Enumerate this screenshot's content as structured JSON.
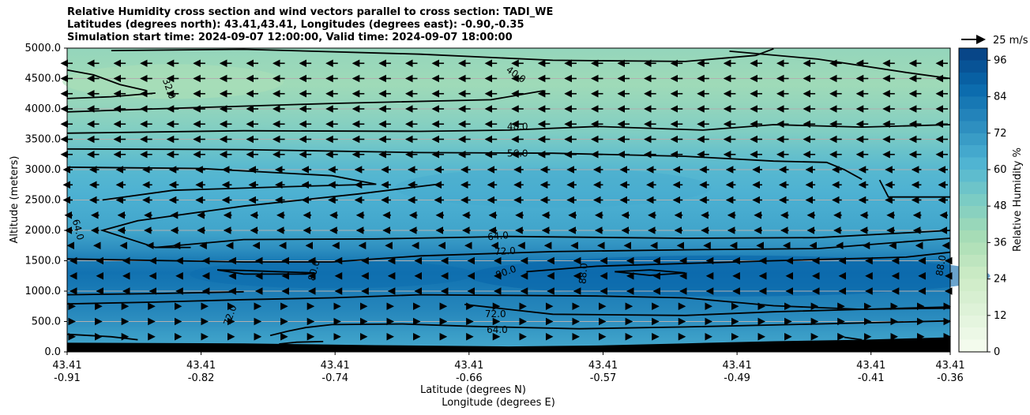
{
  "chart_data": {
    "type": "heatmap",
    "title_lines": [
      "Relative Humidity cross section and wind vectors parallel to cross section: TADI_WE",
      "Latitudes (degrees north): 43.41,43.41, Longitudes (degrees east): -0.90,-0.35",
      "Simulation start time: 2024-09-07 12:00:00, Valid time: 2024-09-07 18:00:00"
    ],
    "ylabel": "Altitude (meters)",
    "xlabel_lat": "Latitude (degrees N)",
    "xlabel_lon": "Longitude (degrees E)",
    "y_ticks": [
      "0.0",
      "500.0",
      "1000.0",
      "1500.0",
      "2000.0",
      "2500.0",
      "3000.0",
      "3500.0",
      "4000.0",
      "4500.0",
      "5000.0"
    ],
    "y_range": [
      0,
      5000
    ],
    "x_ticks_lat": [
      "43.41",
      "43.41",
      "43.41",
      "43.41",
      "43.41",
      "43.41",
      "43.41",
      "43.41"
    ],
    "x_ticks_lon": [
      "-0.91",
      "-0.82",
      "-0.74",
      "-0.66",
      "-0.57",
      "-0.49",
      "-0.41",
      "-0.36"
    ],
    "x_tick_fraction": [
      0,
      0.1517,
      0.3034,
      0.4551,
      0.6069,
      0.7586,
      0.9103,
      1.0
    ],
    "grid": "horizontal",
    "colorbar": {
      "label": "Relative Humidity %",
      "ticks": [
        "0",
        "12",
        "24",
        "36",
        "48",
        "60",
        "72",
        "84",
        "96"
      ],
      "range": [
        0,
        100
      ],
      "levels": 25
    },
    "wind_reference": {
      "label": "25 m/s",
      "speed": 25
    },
    "rh_profile": {
      "altitude": [
        0,
        150,
        300,
        500,
        700,
        900,
        1100,
        1300,
        1500,
        1700,
        2000,
        2300,
        2600,
        3000,
        3300,
        3600,
        4000,
        4400,
        4800,
        5000
      ],
      "rh": [
        66,
        68,
        70,
        74,
        77,
        79,
        82,
        84,
        81,
        74,
        67,
        65,
        63,
        60,
        55,
        49,
        44,
        40,
        42,
        43
      ]
    },
    "contour_labels": [
      {
        "value": "32.0",
        "x": 0.115,
        "alt": 4330,
        "rotate": 70
      },
      {
        "value": "40.0",
        "x": 0.508,
        "alt": 4560,
        "rotate": 35
      },
      {
        "value": "48.0",
        "x": 0.51,
        "alt": 3700,
        "rotate": 0
      },
      {
        "value": "56.0",
        "x": 0.51,
        "alt": 3260,
        "rotate": 0
      },
      {
        "value": "64.0",
        "x": 0.012,
        "alt": 2010,
        "rotate": 75
      },
      {
        "value": "64.0",
        "x": 0.488,
        "alt": 1900,
        "rotate": -5
      },
      {
        "value": "72.0",
        "x": 0.496,
        "alt": 1650,
        "rotate": -3
      },
      {
        "value": "80.0",
        "x": 0.28,
        "alt": 1340,
        "rotate": -75
      },
      {
        "value": "80.0",
        "x": 0.497,
        "alt": 1310,
        "rotate": -20
      },
      {
        "value": "88.0",
        "x": 0.585,
        "alt": 1290,
        "rotate": -85
      },
      {
        "value": "88.0",
        "x": 0.99,
        "alt": 1420,
        "rotate": -80
      },
      {
        "value": "72.0",
        "x": 0.185,
        "alt": 600,
        "rotate": -70
      },
      {
        "value": "72.0",
        "x": 0.485,
        "alt": 620,
        "rotate": 0
      },
      {
        "value": "64.0",
        "x": 0.487,
        "alt": 360,
        "rotate": 0
      }
    ]
  }
}
